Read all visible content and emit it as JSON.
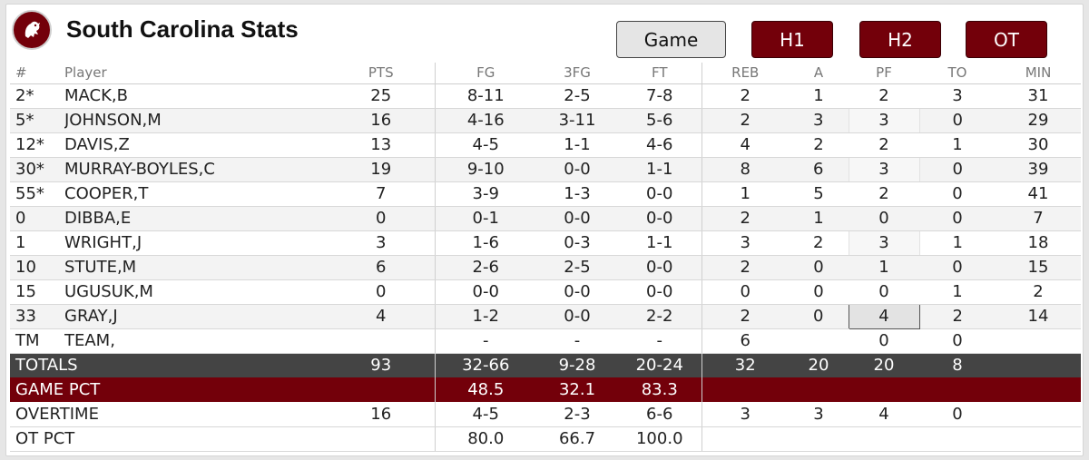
{
  "header": {
    "title": "South Carolina Stats",
    "logo_icon": "gamecock-logo-icon",
    "accent_color": "#73000a"
  },
  "period_buttons": [
    {
      "label": "Game",
      "selected": true
    },
    {
      "label": "H1",
      "selected": false
    },
    {
      "label": "H2",
      "selected": false
    },
    {
      "label": "OT",
      "selected": false
    }
  ],
  "columns": [
    "#",
    "Player",
    "PTS",
    "FG",
    "3FG",
    "FT",
    "REB",
    "A",
    "PF",
    "TO",
    "MIN"
  ],
  "players": [
    [
      "2*",
      "MACK,B",
      "25",
      "8-11",
      "2-5",
      "7-8",
      "2",
      "1",
      "2",
      "3",
      "31"
    ],
    [
      "5*",
      "JOHNSON,M",
      "16",
      "4-16",
      "3-11",
      "5-6",
      "2",
      "3",
      "3",
      "0",
      "29"
    ],
    [
      "12*",
      "DAVIS,Z",
      "13",
      "4-5",
      "1-1",
      "4-6",
      "4",
      "2",
      "2",
      "1",
      "30"
    ],
    [
      "30*",
      "MURRAY-BOYLES,C",
      "19",
      "9-10",
      "0-0",
      "1-1",
      "8",
      "6",
      "3",
      "0",
      "39"
    ],
    [
      "55*",
      "COOPER,T",
      "7",
      "3-9",
      "1-3",
      "0-0",
      "1",
      "5",
      "2",
      "0",
      "41"
    ],
    [
      "0",
      "DIBBA,E",
      "0",
      "0-1",
      "0-0",
      "0-0",
      "2",
      "1",
      "0",
      "0",
      "7"
    ],
    [
      "1",
      "WRIGHT,J",
      "3",
      "1-6",
      "0-3",
      "1-1",
      "3",
      "2",
      "3",
      "1",
      "18"
    ],
    [
      "10",
      "STUTE,M",
      "6",
      "2-6",
      "2-5",
      "0-0",
      "2",
      "0",
      "1",
      "0",
      "15"
    ],
    [
      "15",
      "UGUSUK,M",
      "0",
      "0-0",
      "0-0",
      "0-0",
      "0",
      "0",
      "0",
      "1",
      "2"
    ],
    [
      "33",
      "GRAY,J",
      "4",
      "1-2",
      "0-0",
      "2-2",
      "2",
      "0",
      "4",
      "2",
      "14"
    ],
    [
      "TM",
      "TEAM,",
      "",
      "-",
      "-",
      "-",
      "6",
      "",
      "0",
      "0",
      ""
    ]
  ],
  "totals": {
    "label": "TOTALS",
    "values": [
      "93",
      "32-66",
      "9-28",
      "20-24",
      "32",
      "20",
      "20",
      "8",
      ""
    ]
  },
  "game_pct": {
    "label": "GAME PCT",
    "fg": "48.5",
    "3fg": "32.1",
    "ft": "83.3"
  },
  "overtime": {
    "label": "OVERTIME",
    "values": [
      "16",
      "4-5",
      "2-3",
      "6-6",
      "3",
      "3",
      "4",
      "0",
      ""
    ]
  },
  "ot_pct": {
    "label": "OT PCT",
    "fg": "80.0",
    "3fg": "66.7",
    "ft": "100.0"
  }
}
